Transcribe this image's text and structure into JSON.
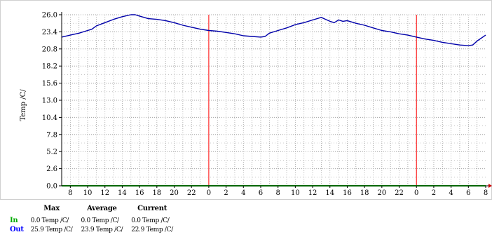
{
  "chart_data": {
    "type": "line",
    "title": "",
    "xlabel": "",
    "ylabel": "Temp /C/",
    "ylim": [
      0,
      26
    ],
    "y_ticks": [
      "0.0",
      "2.6",
      "5.2",
      "7.8",
      "10.4",
      "13.0",
      "15.6",
      "18.2",
      "20.8",
      "23.4",
      "26.0"
    ],
    "x_ticks": [
      "8",
      "10",
      "12",
      "14",
      "16",
      "18",
      "20",
      "22",
      "0",
      "2",
      "4",
      "6",
      "8",
      "10",
      "12",
      "14",
      "16",
      "18",
      "20",
      "22",
      "0",
      "2",
      "4",
      "6",
      "8"
    ],
    "x_range_hours": [
      7,
      56
    ],
    "grid": true,
    "legend": "bottom-left",
    "day_boundaries_hours": [
      24,
      48
    ],
    "series": [
      {
        "name": "Out",
        "color": "#0000aa",
        "x_hours": [
          7,
          8,
          9,
          10,
          10.5,
          11,
          12,
          13,
          14,
          15,
          15.5,
          16,
          17,
          18,
          19,
          20,
          21,
          22,
          23,
          24,
          25,
          26,
          27,
          28,
          29,
          30,
          30.5,
          31,
          32,
          33,
          34,
          35,
          36,
          37,
          37.5,
          38,
          38.5,
          39,
          39.5,
          40,
          41,
          42,
          43,
          44,
          45,
          46,
          47,
          48,
          49,
          50,
          51,
          52,
          53,
          54,
          54.5,
          55,
          56
        ],
        "values": [
          22.6,
          22.9,
          23.2,
          23.6,
          23.8,
          24.3,
          24.8,
          25.3,
          25.7,
          26.0,
          26.0,
          25.8,
          25.4,
          25.3,
          25.1,
          24.8,
          24.4,
          24.1,
          23.8,
          23.6,
          23.5,
          23.3,
          23.1,
          22.8,
          22.7,
          22.6,
          22.7,
          23.2,
          23.6,
          24.0,
          24.5,
          24.8,
          25.2,
          25.6,
          25.3,
          25.0,
          24.8,
          25.2,
          25.0,
          25.1,
          24.7,
          24.4,
          24.0,
          23.6,
          23.4,
          23.1,
          22.9,
          22.6,
          22.3,
          22.1,
          21.8,
          21.6,
          21.4,
          21.3,
          21.4,
          22.0,
          22.9
        ]
      },
      {
        "name": "In",
        "color": "#00cc00",
        "x_hours": [
          7,
          56
        ],
        "values": [
          0.0,
          0.0
        ]
      }
    ]
  },
  "legend_table": {
    "headers": [
      "Max",
      "Average",
      "Current"
    ],
    "rows": [
      {
        "label": "In",
        "max": "0.0 Temp /C/",
        "avg": "0.0 Temp /C/",
        "cur": "0.0 Temp /C/"
      },
      {
        "label": "Out",
        "max": "25.9 Temp /C/",
        "avg": "23.9 Temp /C/",
        "cur": "22.9 Temp /C/"
      }
    ]
  },
  "colors": {
    "grid": "#a0a0a0",
    "day_line": "#ff0000",
    "axis": "#000000",
    "in": "#00aa00",
    "out": "#0000ff"
  }
}
